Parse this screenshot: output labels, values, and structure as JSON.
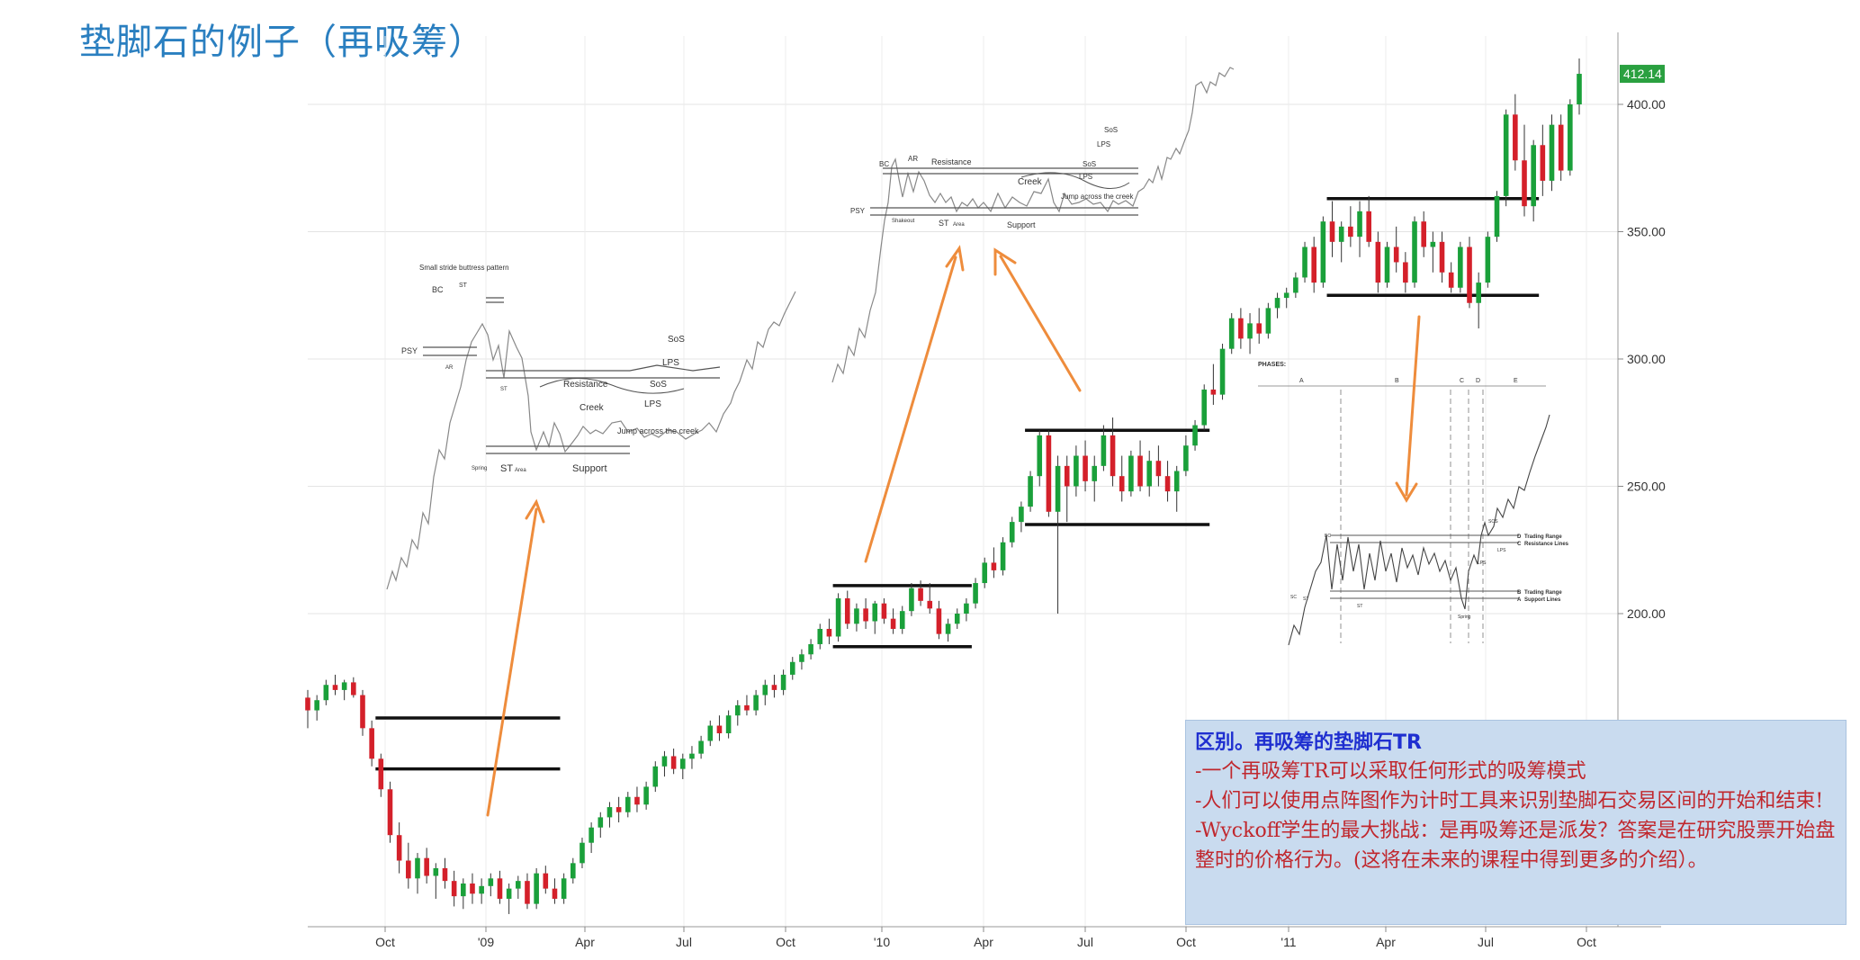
{
  "title": "垫脚石的例子（再吸筹）",
  "notes": {
    "heading": "区别。再吸筹的垫脚石TR",
    "lines": [
      "-一个再吸筹TR可以采取任何形式的吸筹模式",
      "-人们可以使用点阵图作为计时工具来识别垫脚石交易区间的开始和结束!",
      "-Wyckoff学生的最大挑战：是再吸筹还是派发？答案是在研究股票开始盘整时的价格行为。(这将在未来的课程中得到更多的介绍）。"
    ]
  },
  "chart_data": {
    "type": "candlestick",
    "price_axis": {
      "ticks": [
        "200.00",
        "250.00",
        "300.00",
        "350.00",
        "400.00"
      ],
      "tick_values": [
        200,
        250,
        300,
        350,
        400
      ],
      "current_price_label": "412.14"
    },
    "x_axis": {
      "ticks": [
        "Oct",
        "'09",
        "Apr",
        "Jul",
        "Oct",
        "'10",
        "Apr",
        "Jul",
        "Oct",
        "'11",
        "Apr",
        "Jul",
        "Oct"
      ]
    },
    "colors": {
      "up": "#1aa03a",
      "down": "#d4202a",
      "arrow": "#ee8c3c",
      "price_label_bg": "#2aa040"
    },
    "trading_ranges": [
      {
        "name": "range-1",
        "resistance": 159,
        "support": 139
      },
      {
        "name": "range-2",
        "resistance": 211,
        "support": 187
      },
      {
        "name": "range-3",
        "resistance": 272,
        "support": 235
      },
      {
        "name": "range-4",
        "resistance": 363,
        "support": 325
      }
    ],
    "candles": [
      {
        "o": 167,
        "h": 170,
        "l": 155,
        "c": 162
      },
      {
        "o": 162,
        "h": 168,
        "l": 158,
        "c": 166
      },
      {
        "o": 166,
        "h": 174,
        "l": 164,
        "c": 172
      },
      {
        "o": 172,
        "h": 176,
        "l": 168,
        "c": 170
      },
      {
        "o": 170,
        "h": 174,
        "l": 166,
        "c": 173
      },
      {
        "o": 173,
        "h": 175,
        "l": 167,
        "c": 168
      },
      {
        "o": 168,
        "h": 170,
        "l": 152,
        "c": 155
      },
      {
        "o": 155,
        "h": 158,
        "l": 140,
        "c": 143
      },
      {
        "o": 143,
        "h": 145,
        "l": 128,
        "c": 131
      },
      {
        "o": 131,
        "h": 134,
        "l": 110,
        "c": 113
      },
      {
        "o": 113,
        "h": 118,
        "l": 98,
        "c": 103
      },
      {
        "o": 103,
        "h": 110,
        "l": 92,
        "c": 96
      },
      {
        "o": 96,
        "h": 106,
        "l": 90,
        "c": 104
      },
      {
        "o": 104,
        "h": 108,
        "l": 94,
        "c": 97
      },
      {
        "o": 97,
        "h": 102,
        "l": 88,
        "c": 100
      },
      {
        "o": 100,
        "h": 104,
        "l": 92,
        "c": 95
      },
      {
        "o": 95,
        "h": 99,
        "l": 85,
        "c": 89
      },
      {
        "o": 89,
        "h": 96,
        "l": 84,
        "c": 94
      },
      {
        "o": 94,
        "h": 98,
        "l": 86,
        "c": 90
      },
      {
        "o": 90,
        "h": 96,
        "l": 86,
        "c": 93
      },
      {
        "o": 93,
        "h": 98,
        "l": 89,
        "c": 96
      },
      {
        "o": 96,
        "h": 99,
        "l": 86,
        "c": 88
      },
      {
        "o": 88,
        "h": 94,
        "l": 82,
        "c": 92
      },
      {
        "o": 92,
        "h": 97,
        "l": 88,
        "c": 95
      },
      {
        "o": 95,
        "h": 98,
        "l": 84,
        "c": 86
      },
      {
        "o": 86,
        "h": 100,
        "l": 84,
        "c": 98
      },
      {
        "o": 98,
        "h": 101,
        "l": 90,
        "c": 92
      },
      {
        "o": 92,
        "h": 96,
        "l": 86,
        "c": 88
      },
      {
        "o": 88,
        "h": 98,
        "l": 86,
        "c": 96
      },
      {
        "o": 96,
        "h": 104,
        "l": 94,
        "c": 102
      },
      {
        "o": 102,
        "h": 112,
        "l": 100,
        "c": 110
      },
      {
        "o": 110,
        "h": 118,
        "l": 106,
        "c": 116
      },
      {
        "o": 116,
        "h": 122,
        "l": 112,
        "c": 120
      },
      {
        "o": 120,
        "h": 126,
        "l": 116,
        "c": 124
      },
      {
        "o": 124,
        "h": 128,
        "l": 118,
        "c": 122
      },
      {
        "o": 122,
        "h": 130,
        "l": 120,
        "c": 128
      },
      {
        "o": 128,
        "h": 132,
        "l": 122,
        "c": 125
      },
      {
        "o": 125,
        "h": 134,
        "l": 123,
        "c": 132
      },
      {
        "o": 132,
        "h": 142,
        "l": 130,
        "c": 140
      },
      {
        "o": 140,
        "h": 146,
        "l": 136,
        "c": 144
      },
      {
        "o": 144,
        "h": 147,
        "l": 137,
        "c": 139
      },
      {
        "o": 139,
        "h": 145,
        "l": 135,
        "c": 143
      },
      {
        "o": 143,
        "h": 148,
        "l": 139,
        "c": 145
      },
      {
        "o": 145,
        "h": 152,
        "l": 143,
        "c": 150
      },
      {
        "o": 150,
        "h": 158,
        "l": 148,
        "c": 156
      },
      {
        "o": 156,
        "h": 160,
        "l": 150,
        "c": 153
      },
      {
        "o": 153,
        "h": 162,
        "l": 151,
        "c": 160
      },
      {
        "o": 160,
        "h": 166,
        "l": 156,
        "c": 164
      },
      {
        "o": 164,
        "h": 168,
        "l": 160,
        "c": 162
      },
      {
        "o": 162,
        "h": 170,
        "l": 160,
        "c": 168
      },
      {
        "o": 168,
        "h": 174,
        "l": 164,
        "c": 172
      },
      {
        "o": 172,
        "h": 176,
        "l": 167,
        "c": 170
      },
      {
        "o": 170,
        "h": 178,
        "l": 168,
        "c": 176
      },
      {
        "o": 176,
        "h": 183,
        "l": 174,
        "c": 181
      },
      {
        "o": 181,
        "h": 186,
        "l": 178,
        "c": 184
      },
      {
        "o": 184,
        "h": 190,
        "l": 182,
        "c": 188
      },
      {
        "o": 188,
        "h": 196,
        "l": 186,
        "c": 194
      },
      {
        "o": 194,
        "h": 198,
        "l": 188,
        "c": 191
      },
      {
        "o": 191,
        "h": 208,
        "l": 189,
        "c": 206
      },
      {
        "o": 206,
        "h": 209,
        "l": 194,
        "c": 196
      },
      {
        "o": 196,
        "h": 204,
        "l": 193,
        "c": 202
      },
      {
        "o": 202,
        "h": 206,
        "l": 194,
        "c": 197
      },
      {
        "o": 197,
        "h": 205,
        "l": 192,
        "c": 204
      },
      {
        "o": 204,
        "h": 206,
        "l": 196,
        "c": 198
      },
      {
        "o": 198,
        "h": 202,
        "l": 192,
        "c": 194
      },
      {
        "o": 194,
        "h": 203,
        "l": 192,
        "c": 201
      },
      {
        "o": 201,
        "h": 212,
        "l": 199,
        "c": 210
      },
      {
        "o": 210,
        "h": 213,
        "l": 203,
        "c": 205
      },
      {
        "o": 205,
        "h": 212,
        "l": 200,
        "c": 202
      },
      {
        "o": 202,
        "h": 205,
        "l": 190,
        "c": 192
      },
      {
        "o": 192,
        "h": 198,
        "l": 189,
        "c": 196
      },
      {
        "o": 196,
        "h": 202,
        "l": 194,
        "c": 200
      },
      {
        "o": 200,
        "h": 206,
        "l": 197,
        "c": 204
      },
      {
        "o": 204,
        "h": 214,
        "l": 202,
        "c": 212
      },
      {
        "o": 212,
        "h": 222,
        "l": 210,
        "c": 220
      },
      {
        "o": 220,
        "h": 226,
        "l": 214,
        "c": 217
      },
      {
        "o": 217,
        "h": 230,
        "l": 215,
        "c": 228
      },
      {
        "o": 228,
        "h": 238,
        "l": 226,
        "c": 236
      },
      {
        "o": 236,
        "h": 244,
        "l": 232,
        "c": 242
      },
      {
        "o": 242,
        "h": 256,
        "l": 240,
        "c": 254
      },
      {
        "o": 254,
        "h": 272,
        "l": 250,
        "c": 270
      },
      {
        "o": 270,
        "h": 272,
        "l": 238,
        "c": 240
      },
      {
        "o": 240,
        "h": 262,
        "l": 200,
        "c": 258
      },
      {
        "o": 258,
        "h": 262,
        "l": 236,
        "c": 250
      },
      {
        "o": 250,
        "h": 266,
        "l": 246,
        "c": 262
      },
      {
        "o": 262,
        "h": 268,
        "l": 248,
        "c": 252
      },
      {
        "o": 252,
        "h": 262,
        "l": 244,
        "c": 258
      },
      {
        "o": 258,
        "h": 274,
        "l": 256,
        "c": 270
      },
      {
        "o": 270,
        "h": 277,
        "l": 250,
        "c": 254
      },
      {
        "o": 254,
        "h": 262,
        "l": 244,
        "c": 248
      },
      {
        "o": 248,
        "h": 264,
        "l": 246,
        "c": 262
      },
      {
        "o": 262,
        "h": 268,
        "l": 248,
        "c": 250
      },
      {
        "o": 250,
        "h": 264,
        "l": 246,
        "c": 260
      },
      {
        "o": 260,
        "h": 266,
        "l": 250,
        "c": 254
      },
      {
        "o": 254,
        "h": 260,
        "l": 244,
        "c": 248
      },
      {
        "o": 248,
        "h": 258,
        "l": 240,
        "c": 256
      },
      {
        "o": 256,
        "h": 270,
        "l": 254,
        "c": 266
      },
      {
        "o": 266,
        "h": 276,
        "l": 264,
        "c": 274
      },
      {
        "o": 274,
        "h": 290,
        "l": 272,
        "c": 288
      },
      {
        "o": 288,
        "h": 298,
        "l": 282,
        "c": 286
      },
      {
        "o": 286,
        "h": 306,
        "l": 284,
        "c": 304
      },
      {
        "o": 304,
        "h": 318,
        "l": 302,
        "c": 316
      },
      {
        "o": 316,
        "h": 320,
        "l": 304,
        "c": 308
      },
      {
        "o": 308,
        "h": 318,
        "l": 302,
        "c": 314
      },
      {
        "o": 314,
        "h": 320,
        "l": 306,
        "c": 310
      },
      {
        "o": 310,
        "h": 322,
        "l": 308,
        "c": 320
      },
      {
        "o": 320,
        "h": 326,
        "l": 316,
        "c": 324
      },
      {
        "o": 324,
        "h": 328,
        "l": 320,
        "c": 326
      },
      {
        "o": 326,
        "h": 334,
        "l": 324,
        "c": 332
      },
      {
        "o": 332,
        "h": 346,
        "l": 330,
        "c": 344
      },
      {
        "o": 344,
        "h": 348,
        "l": 326,
        "c": 330
      },
      {
        "o": 330,
        "h": 356,
        "l": 328,
        "c": 354
      },
      {
        "o": 354,
        "h": 362,
        "l": 340,
        "c": 346
      },
      {
        "o": 346,
        "h": 354,
        "l": 338,
        "c": 352
      },
      {
        "o": 352,
        "h": 360,
        "l": 344,
        "c": 348
      },
      {
        "o": 348,
        "h": 362,
        "l": 340,
        "c": 358
      },
      {
        "o": 358,
        "h": 364,
        "l": 344,
        "c": 346
      },
      {
        "o": 346,
        "h": 350,
        "l": 326,
        "c": 330
      },
      {
        "o": 330,
        "h": 346,
        "l": 328,
        "c": 344
      },
      {
        "o": 344,
        "h": 352,
        "l": 334,
        "c": 338
      },
      {
        "o": 338,
        "h": 342,
        "l": 326,
        "c": 330
      },
      {
        "o": 330,
        "h": 356,
        "l": 328,
        "c": 354
      },
      {
        "o": 354,
        "h": 358,
        "l": 340,
        "c": 344
      },
      {
        "o": 344,
        "h": 350,
        "l": 334,
        "c": 346
      },
      {
        "o": 346,
        "h": 350,
        "l": 330,
        "c": 334
      },
      {
        "o": 334,
        "h": 338,
        "l": 326,
        "c": 328
      },
      {
        "o": 328,
        "h": 346,
        "l": 326,
        "c": 344
      },
      {
        "o": 344,
        "h": 348,
        "l": 320,
        "c": 322
      },
      {
        "o": 322,
        "h": 334,
        "l": 312,
        "c": 330
      },
      {
        "o": 330,
        "h": 350,
        "l": 328,
        "c": 348
      },
      {
        "o": 348,
        "h": 366,
        "l": 346,
        "c": 364
      },
      {
        "o": 364,
        "h": 398,
        "l": 360,
        "c": 396
      },
      {
        "o": 396,
        "h": 404,
        "l": 374,
        "c": 378
      },
      {
        "o": 378,
        "h": 392,
        "l": 356,
        "c": 360
      },
      {
        "o": 360,
        "h": 386,
        "l": 354,
        "c": 384
      },
      {
        "o": 384,
        "h": 392,
        "l": 364,
        "c": 370
      },
      {
        "o": 370,
        "h": 396,
        "l": 366,
        "c": 392
      },
      {
        "o": 392,
        "h": 396,
        "l": 370,
        "c": 374
      },
      {
        "o": 374,
        "h": 402,
        "l": 372,
        "c": 400
      },
      {
        "o": 400,
        "h": 418,
        "l": 396,
        "c": 412
      }
    ]
  },
  "schematics": {
    "s1": {
      "header": "Small stride buttress pattern",
      "labels": [
        "BC",
        "ST",
        "PSY",
        "AR",
        "Resistance",
        "Creek",
        "SoS",
        "LPS",
        "SoS",
        "LPS",
        "Jump across the creek",
        "ST",
        "Support",
        "Spring",
        "ST",
        "Area"
      ]
    },
    "s2": {
      "labels": [
        "BC",
        "AR",
        "Resistance",
        "PSY",
        "Shakeout",
        "ST",
        "Area",
        "Creek",
        "LPS",
        "SoS",
        "LPS",
        "SoS",
        "Jump across the creek",
        "Support"
      ]
    },
    "s3": {
      "header": "PHASES:",
      "phases": [
        "A",
        "B",
        "C",
        "D",
        "E"
      ],
      "legend": [
        "Trading Range",
        "Resistance Lines",
        "Trading Range",
        "Support Lines"
      ],
      "letters": [
        "D",
        "C",
        "B",
        "A"
      ],
      "labels": [
        "BC",
        "SOS",
        "LPS",
        "LPS",
        "SC",
        "ST",
        "ST",
        "Spring"
      ]
    }
  }
}
